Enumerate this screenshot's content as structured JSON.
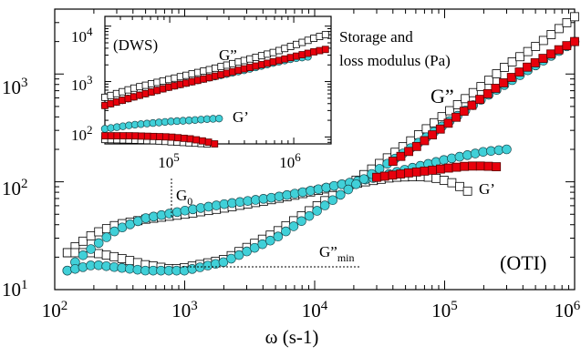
{
  "chart_data": [
    {
      "type": "scatter",
      "xlabel": "ω (s-1)",
      "xscale": "log",
      "yscale": "log",
      "xlim": [
        100,
        1000000
      ],
      "ylim": [
        10,
        4000
      ],
      "xticks": [
        "10^2",
        "10^3",
        "10^4",
        "10^5",
        "10^6"
      ],
      "yticks": [
        "10^1",
        "10^2",
        "10^3"
      ],
      "annotations": {
        "oti": "(OTI)",
        "g_double_prime": "G”",
        "g_prime": "G’",
        "g0": "G",
        "g0_sub": "0",
        "gmin": "G”",
        "gmin_sub": "min",
        "storage_loss_line1": "Storage and",
        "storage_loss_line2": "loss modulus (Pa)"
      },
      "colors": {
        "open_marker": "#ffffff",
        "cyan_marker": "#40d0d8",
        "red_marker": "#e8000c"
      },
      "series": [
        {
          "marker": "open-square",
          "x": [
            125,
            150,
            200,
            300,
            500,
            1000,
            2000,
            4000,
            7000,
            10000,
            20000,
            30000,
            40000,
            60000,
            80000,
            100000,
            120000,
            150000
          ],
          "y": [
            22,
            26,
            33,
            40,
            45,
            50,
            57,
            66,
            75,
            82,
            96,
            104,
            110,
            112,
            110,
            103,
            96,
            82
          ]
        },
        {
          "marker": "open-square",
          "x": [
            125,
            200,
            300,
            500,
            800,
            1000,
            2000,
            5000,
            10000,
            20000,
            50000,
            100000,
            200000,
            300000,
            500000,
            1000000
          ],
          "y": [
            22,
            22,
            20,
            17,
            15.5,
            16,
            19,
            34,
            58,
            100,
            220,
            420,
            800,
            1200,
            1800,
            3400
          ]
        },
        {
          "marker": "cyan-circle",
          "x": [
            125,
            150,
            200,
            300,
            500,
            1000,
            2000,
            5000,
            10000,
            20000,
            30000,
            50000,
            100000,
            200000,
            300000
          ],
          "y": [
            15,
            19,
            25,
            36,
            46,
            54,
            62,
            72,
            84,
            100,
            110,
            130,
            160,
            190,
            200
          ]
        },
        {
          "marker": "cyan-circle",
          "x": [
            125,
            200,
            500,
            1000,
            2000,
            5000,
            10000,
            20000,
            50000,
            100000,
            200000,
            500000,
            1000000
          ],
          "y": [
            15,
            17,
            15,
            15,
            18,
            30,
            52,
            92,
            190,
            340,
            600,
            1200,
            2000
          ]
        },
        {
          "marker": "red-square",
          "x": [
            30000,
            50000,
            80000,
            100000,
            150000,
            200000,
            250000
          ],
          "y": [
            110,
            120,
            128,
            133,
            140,
            140,
            138
          ]
        },
        {
          "marker": "red-square",
          "x": [
            40000,
            60000,
            100000,
            200000,
            400000,
            700000,
            1000000
          ],
          "y": [
            155,
            210,
            330,
            620,
            1100,
            1600,
            2000
          ]
        }
      ]
    },
    {
      "type": "scatter",
      "inset": true,
      "xscale": "log",
      "yscale": "log",
      "xlim": [
        30000,
        2000000
      ],
      "ylim": [
        75,
        15000
      ],
      "xticks": [
        "10^5",
        "10^6"
      ],
      "yticks": [
        "10^2",
        "10^3",
        "10^4"
      ],
      "annotations": {
        "dws": "(DWS)",
        "g_double_prime": "G”",
        "g_prime": "G’"
      },
      "series": [
        {
          "marker": "open-square",
          "x": [
            30000,
            50000,
            100000,
            200000,
            400000,
            700000,
            1000000,
            1500000,
            1800000
          ],
          "y": [
            520,
            750,
            1100,
            1600,
            2400,
            3400,
            4500,
            6200,
            7000
          ]
        },
        {
          "marker": "cyan-circle",
          "x": [
            30000,
            50000,
            100000,
            200000,
            400000,
            700000,
            1000000,
            1300000
          ],
          "y": [
            370,
            520,
            800,
            1150,
            1600,
            2200,
            2600,
            2800
          ]
        },
        {
          "marker": "red-square",
          "x": [
            30000,
            50000,
            100000,
            200000,
            400000,
            700000,
            1000000,
            1500000,
            1800000
          ],
          "y": [
            370,
            520,
            800,
            1150,
            1700,
            2300,
            2800,
            3500,
            3800
          ]
        },
        {
          "marker": "cyan-circle",
          "x": [
            30000,
            50000,
            100000,
            150000,
            200000,
            250000
          ],
          "y": [
            140,
            165,
            190,
            200,
            210,
            215
          ]
        },
        {
          "marker": "red-square",
          "x": [
            30000,
            50000,
            100000,
            150000,
            200000,
            230000
          ],
          "y": [
            105,
            105,
            100,
            92,
            82,
            75
          ]
        },
        {
          "marker": "open-square",
          "x": [
            30000,
            50000,
            80000,
            100000,
            150000,
            200000
          ],
          "y": [
            90,
            88,
            85,
            82,
            78,
            75
          ]
        }
      ]
    }
  ]
}
